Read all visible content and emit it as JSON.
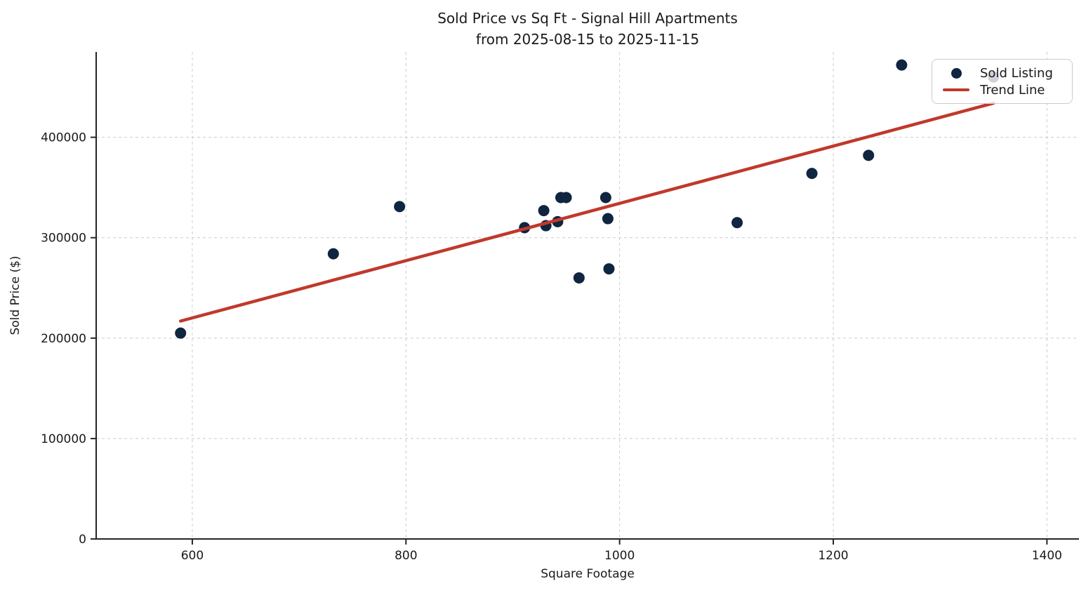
{
  "title": {
    "line1": "Sold Price vs Sq Ft - Signal Hill Apartments",
    "line2": "from 2025-08-15 to 2025-11-15"
  },
  "axes": {
    "x_label": "Square Footage",
    "y_label": "Sold Price ($)"
  },
  "legend": {
    "items": [
      {
        "label": "Sold Listing",
        "marker": "dot"
      },
      {
        "label": "Trend Line",
        "marker": "line"
      }
    ]
  },
  "colors": {
    "scatter": "#0f2540",
    "trend": "#c0392b",
    "grid": "#cccccc",
    "spine": "#262626",
    "text": "#1a1a1a"
  },
  "chart_data": {
    "type": "scatter",
    "title": "Sold Price vs Sq Ft - Signal Hill Apartments from 2025-08-15 to 2025-11-15",
    "xlabel": "Square Footage",
    "ylabel": "Sold Price ($)",
    "xlim": [
      510,
      1430
    ],
    "ylim": [
      0,
      485000
    ],
    "x_ticks": [
      600,
      800,
      1000,
      1200,
      1400
    ],
    "y_ticks": [
      0,
      100000,
      200000,
      300000,
      400000
    ],
    "grid": "dashed",
    "legend_position": "upper right",
    "series": [
      {
        "name": "Sold Listing",
        "type": "scatter",
        "color": "#0f2540",
        "points": [
          [
            589,
            205000
          ],
          [
            732,
            284000
          ],
          [
            794,
            331000
          ],
          [
            911,
            310000
          ],
          [
            929,
            327000
          ],
          [
            931,
            312000
          ],
          [
            942,
            316000
          ],
          [
            945,
            340000
          ],
          [
            950,
            340000
          ],
          [
            962,
            260000
          ],
          [
            987,
            340000
          ],
          [
            989,
            319000
          ],
          [
            990,
            269000
          ],
          [
            1110,
            315000
          ],
          [
            1180,
            364000
          ],
          [
            1233,
            382000
          ],
          [
            1264,
            472000
          ],
          [
            1350,
            460000
          ]
        ]
      },
      {
        "name": "Trend Line",
        "type": "line",
        "color": "#c0392b",
        "points": [
          [
            589,
            217000
          ],
          [
            1350,
            434000
          ]
        ]
      }
    ]
  }
}
